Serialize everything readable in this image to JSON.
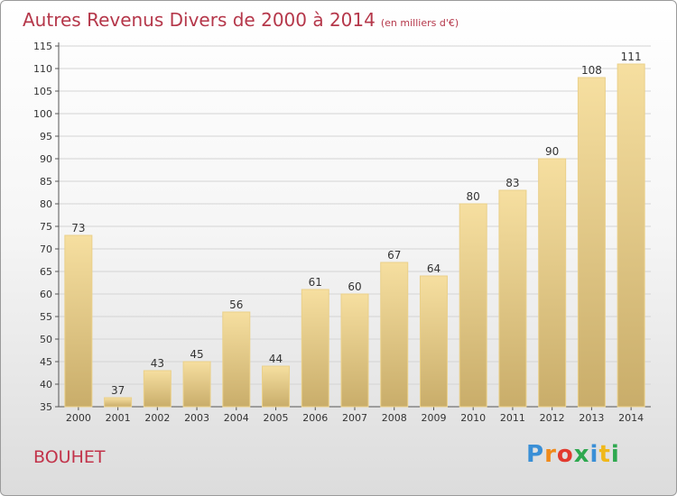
{
  "header": {
    "title": "Autres Revenus Divers de 2000 à 2014",
    "unit": "(en milliers d'€)"
  },
  "footer": {
    "place": "BOUHET",
    "logo_letters": [
      {
        "ch": "P",
        "color": "#3a8fd6"
      },
      {
        "ch": "r",
        "color": "#f08a1a"
      },
      {
        "ch": "o",
        "color": "#e23a2e"
      },
      {
        "ch": "x",
        "color": "#2ea84f"
      },
      {
        "ch": "i",
        "color": "#3a8fd6"
      },
      {
        "ch": "t",
        "color": "#f0b81a"
      },
      {
        "ch": "i",
        "color": "#2ea84f"
      }
    ]
  },
  "chart_data": {
    "type": "bar",
    "title": "Autres Revenus Divers de 2000 à 2014",
    "xlabel": "",
    "ylabel": "",
    "categories": [
      "2000",
      "2001",
      "2002",
      "2003",
      "2004",
      "2005",
      "2006",
      "2007",
      "2008",
      "2009",
      "2010",
      "2011",
      "2012",
      "2013",
      "2014"
    ],
    "values": [
      73,
      37,
      43,
      45,
      56,
      44,
      61,
      60,
      67,
      64,
      80,
      83,
      90,
      108,
      111
    ],
    "ylim": [
      35,
      115
    ],
    "yticks": [
      35,
      40,
      45,
      50,
      55,
      60,
      65,
      70,
      75,
      80,
      85,
      90,
      95,
      100,
      105,
      110,
      115
    ],
    "grid": true,
    "colors": {
      "bar_light": "#f6dfa0",
      "bar_dark": "#c9ad6a",
      "bar_edge": "#ead08a",
      "grid": "#d4d4d4",
      "axis": "#555555",
      "label": "#333333"
    }
  }
}
